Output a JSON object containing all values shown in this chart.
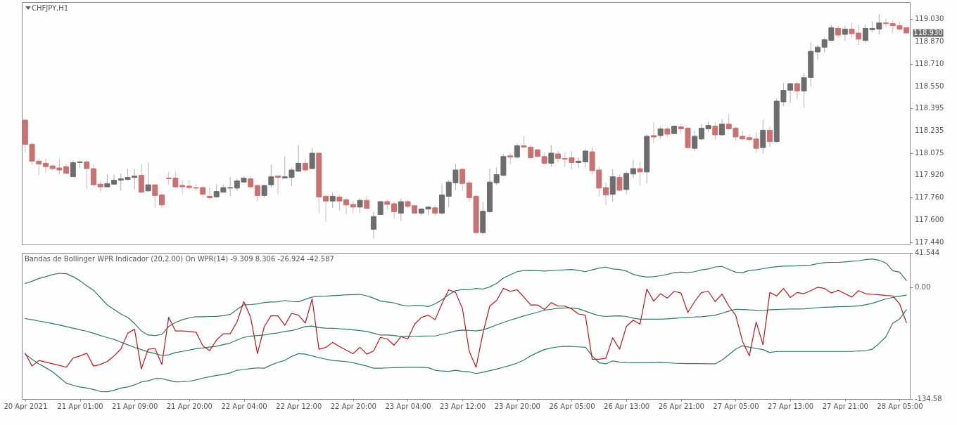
{
  "chart_data": [
    {
      "type": "candlestick",
      "title": "CHFJPY,H1",
      "ohlc": [
        [
          118.31,
          118.315,
          118.08,
          118.138
        ],
        [
          118.138,
          118.152,
          117.994,
          118.018
        ],
        [
          118.018,
          118.037,
          117.917,
          117.998
        ],
        [
          118.003,
          118.037,
          117.936,
          117.979
        ],
        [
          117.984,
          117.998,
          117.95,
          117.965
        ],
        [
          117.97,
          118.032,
          117.922,
          117.955
        ],
        [
          117.979,
          117.994,
          117.922,
          117.931
        ],
        [
          117.907,
          118.022,
          117.907,
          118.008
        ],
        [
          118.008,
          118.022,
          117.97,
          118.013
        ],
        [
          118.013,
          118.027,
          117.821,
          117.965
        ],
        [
          117.965,
          117.994,
          117.84,
          117.85
        ],
        [
          117.854,
          117.878,
          117.797,
          117.835
        ],
        [
          117.835,
          117.922,
          117.83,
          117.859
        ],
        [
          117.854,
          117.922,
          117.85,
          117.883
        ],
        [
          117.883,
          117.931,
          117.811,
          117.893
        ],
        [
          117.888,
          117.965,
          117.878,
          117.902
        ],
        [
          117.902,
          117.96,
          117.816,
          117.912
        ],
        [
          117.917,
          117.998,
          117.792,
          117.797
        ],
        [
          117.806,
          118.008,
          117.802,
          117.85
        ],
        [
          117.85,
          117.85,
          117.686,
          117.773
        ],
        [
          117.778,
          117.787,
          117.686,
          117.706
        ],
        [
          117.898,
          117.941,
          117.85,
          117.893
        ],
        [
          117.898,
          117.941,
          117.83,
          117.835
        ],
        [
          117.845,
          117.883,
          117.782,
          117.835
        ],
        [
          117.84,
          117.883,
          117.811,
          117.83
        ],
        [
          117.83,
          117.854,
          117.811,
          117.826
        ],
        [
          117.83,
          117.84,
          117.758,
          117.782
        ],
        [
          117.768,
          117.83,
          117.749,
          117.758
        ],
        [
          117.763,
          117.854,
          117.763,
          117.802
        ],
        [
          117.797,
          117.854,
          117.797,
          117.83
        ],
        [
          117.826,
          117.907,
          117.768,
          117.83
        ],
        [
          117.826,
          117.893,
          117.806,
          117.878
        ],
        [
          117.869,
          117.907,
          117.864,
          117.898
        ],
        [
          117.893,
          117.907,
          117.821,
          117.835
        ],
        [
          117.845,
          117.85,
          117.734,
          117.773
        ],
        [
          117.773,
          117.85,
          117.758,
          117.845
        ],
        [
          117.85,
          117.994,
          117.83,
          117.907
        ],
        [
          117.912,
          117.917,
          117.782,
          117.902
        ],
        [
          117.898,
          118.051,
          117.898,
          117.907
        ],
        [
          117.902,
          117.974,
          117.84,
          117.955
        ],
        [
          117.946,
          118.133,
          117.946,
          118.003
        ],
        [
          118.003,
          118.037,
          117.946,
          117.955
        ],
        [
          117.965,
          118.114,
          117.96,
          118.075
        ],
        [
          118.075,
          118.08,
          117.648,
          117.763
        ],
        [
          117.768,
          117.778,
          117.586,
          117.734
        ],
        [
          117.734,
          117.797,
          117.686,
          117.768
        ],
        [
          117.763,
          117.778,
          117.667,
          117.734
        ],
        [
          117.744,
          117.758,
          117.638,
          117.706
        ],
        [
          117.71,
          117.734,
          117.648,
          117.691
        ],
        [
          117.691,
          117.754,
          117.648,
          117.739
        ],
        [
          117.739,
          117.768,
          117.682,
          117.682
        ],
        [
          117.533,
          117.658,
          117.466,
          117.624
        ],
        [
          117.638,
          117.734,
          117.638,
          117.73
        ],
        [
          117.73,
          117.744,
          117.672,
          117.71
        ],
        [
          117.715,
          117.73,
          117.61,
          117.658
        ],
        [
          117.648,
          117.754,
          117.59,
          117.73
        ],
        [
          117.73,
          117.739,
          117.682,
          117.696
        ],
        [
          117.701,
          117.706,
          117.638,
          117.648
        ],
        [
          117.648,
          117.686,
          117.634,
          117.677
        ],
        [
          117.677,
          117.701,
          117.634,
          117.691
        ],
        [
          117.686,
          117.701,
          117.629,
          117.648
        ],
        [
          117.648,
          117.854,
          117.638,
          117.778
        ],
        [
          117.768,
          117.883,
          117.691,
          117.869
        ],
        [
          117.864,
          117.998,
          117.811,
          117.955
        ],
        [
          117.96,
          117.97,
          117.806,
          117.859
        ],
        [
          117.864,
          117.883,
          117.73,
          117.758
        ],
        [
          117.768,
          117.778,
          117.494,
          117.509
        ],
        [
          117.509,
          117.73,
          117.494,
          117.662
        ],
        [
          117.658,
          117.965,
          117.648,
          117.869
        ],
        [
          117.864,
          117.974,
          117.85,
          117.922
        ],
        [
          117.917,
          118.07,
          117.912,
          118.051
        ],
        [
          118.056,
          118.08,
          117.998,
          118.046
        ],
        [
          118.046,
          118.142,
          118.042,
          118.128
        ],
        [
          118.128,
          118.195,
          118.114,
          118.118
        ],
        [
          118.118,
          118.133,
          118.037,
          118.042
        ],
        [
          118.099,
          118.104,
          118.042,
          118.051
        ],
        [
          118.051,
          118.08,
          117.994,
          118.003
        ],
        [
          118.003,
          118.133,
          117.979,
          118.075
        ],
        [
          118.07,
          118.09,
          118.008,
          118.037
        ],
        [
          118.037,
          118.08,
          117.979,
          118.032
        ],
        [
          118.042,
          118.09,
          117.96,
          118.008
        ],
        [
          118.008,
          118.042,
          117.97,
          118.018
        ],
        [
          118.013,
          118.104,
          117.97,
          118.09
        ],
        [
          118.085,
          118.114,
          117.922,
          117.95
        ],
        [
          117.955,
          117.979,
          117.768,
          117.826
        ],
        [
          117.83,
          117.864,
          117.706,
          117.778
        ],
        [
          117.782,
          117.96,
          117.73,
          117.907
        ],
        [
          117.902,
          117.926,
          117.806,
          117.811
        ],
        [
          117.816,
          117.946,
          117.782,
          117.931
        ],
        [
          117.926,
          118.027,
          117.898,
          117.965
        ],
        [
          117.965,
          118.013,
          117.845,
          117.941
        ],
        [
          117.941,
          118.21,
          117.859,
          118.195
        ],
        [
          118.2,
          118.296,
          118.147,
          118.19
        ],
        [
          118.2,
          118.262,
          118.176,
          118.248
        ],
        [
          118.248,
          118.262,
          118.19,
          118.21
        ],
        [
          118.214,
          118.272,
          118.21,
          118.267
        ],
        [
          118.262,
          118.282,
          118.214,
          118.248
        ],
        [
          118.253,
          118.258,
          118.114,
          118.114
        ],
        [
          118.109,
          118.234,
          118.09,
          118.195
        ],
        [
          118.176,
          118.286,
          118.166,
          118.253
        ],
        [
          118.248,
          118.301,
          118.224,
          118.272
        ],
        [
          118.267,
          118.296,
          118.171,
          118.205
        ],
        [
          118.205,
          118.315,
          118.2,
          118.282
        ],
        [
          118.282,
          118.354,
          118.238,
          118.248
        ],
        [
          118.253,
          118.262,
          118.166,
          118.19
        ],
        [
          118.195,
          118.234,
          118.171,
          118.176
        ],
        [
          118.186,
          118.21,
          118.162,
          118.171
        ],
        [
          118.176,
          118.224,
          118.08,
          118.109
        ],
        [
          118.114,
          118.31,
          118.07,
          118.238
        ],
        [
          118.238,
          118.262,
          118.118,
          118.157
        ],
        [
          118.157,
          118.464,
          118.152,
          118.445
        ],
        [
          118.44,
          118.574,
          118.411,
          118.522
        ],
        [
          118.522,
          118.574,
          118.43,
          118.57
        ],
        [
          118.57,
          118.579,
          118.459,
          118.517
        ],
        [
          118.517,
          118.646,
          118.397,
          118.613
        ],
        [
          118.613,
          118.862,
          118.55,
          118.8
        ],
        [
          118.795,
          118.843,
          118.742,
          118.829
        ],
        [
          118.829,
          118.896,
          118.79,
          118.882
        ],
        [
          118.877,
          118.987,
          118.872,
          118.968
        ],
        [
          118.963,
          118.982,
          118.896,
          118.915
        ],
        [
          118.92,
          118.978,
          118.877,
          118.958
        ],
        [
          118.958,
          119.002,
          118.896,
          118.925
        ],
        [
          118.93,
          118.987,
          118.843,
          118.886
        ],
        [
          118.877,
          118.992,
          118.862,
          118.963
        ],
        [
          118.954,
          119.011,
          118.934,
          118.963
        ],
        [
          118.958,
          119.064,
          118.92,
          119.002
        ],
        [
          119.002,
          119.035,
          118.973,
          118.997
        ],
        [
          118.997,
          119.021,
          118.934,
          118.982
        ],
        [
          118.982,
          119.011,
          118.944,
          118.958
        ],
        [
          118.968,
          118.968,
          118.925,
          118.93
        ]
      ],
      "colors": [
        "#c97272",
        "#c97272",
        "#c97272",
        "#c97272",
        "#c97272",
        "#c97272",
        "#c97272",
        "#6d6d6d",
        "#6d6d6d",
        "#c97272",
        "#c97272",
        "#c97272",
        "#6d6d6d",
        "#6d6d6d",
        "#6d6d6d",
        "#6d6d6d",
        "#6d6d6d",
        "#c97272",
        "#6d6d6d",
        "#c97272",
        "#c97272",
        "#c97272",
        "#c97272",
        "#c97272",
        "#c97272",
        "#c97272",
        "#c97272",
        "#c97272",
        "#6d6d6d",
        "#6d6d6d",
        "#6d6d6d",
        "#6d6d6d",
        "#6d6d6d",
        "#c97272",
        "#c97272",
        "#6d6d6d",
        "#6d6d6d",
        "#c97272",
        "#6d6d6d",
        "#6d6d6d",
        "#6d6d6d",
        "#c97272",
        "#6d6d6d",
        "#c97272",
        "#c97272",
        "#6d6d6d",
        "#c97272",
        "#c97272",
        "#c97272",
        "#6d6d6d",
        "#c97272",
        "#6d6d6d",
        "#6d6d6d",
        "#c97272",
        "#c97272",
        "#6d6d6d",
        "#c97272",
        "#c97272",
        "#6d6d6d",
        "#6d6d6d",
        "#c97272",
        "#6d6d6d",
        "#6d6d6d",
        "#6d6d6d",
        "#c97272",
        "#c97272",
        "#c97272",
        "#6d6d6d",
        "#6d6d6d",
        "#6d6d6d",
        "#6d6d6d",
        "#c97272",
        "#6d6d6d",
        "#c97272",
        "#c97272",
        "#c97272",
        "#c97272",
        "#6d6d6d",
        "#c97272",
        "#c97272",
        "#c97272",
        "#6d6d6d",
        "#6d6d6d",
        "#c97272",
        "#c97272",
        "#c97272",
        "#6d6d6d",
        "#c97272",
        "#6d6d6d",
        "#6d6d6d",
        "#c97272",
        "#6d6d6d",
        "#c97272",
        "#6d6d6d",
        "#c97272",
        "#6d6d6d",
        "#c97272",
        "#c97272",
        "#6d6d6d",
        "#6d6d6d",
        "#6d6d6d",
        "#c97272",
        "#6d6d6d",
        "#c97272",
        "#c97272",
        "#c97272",
        "#c97272",
        "#c97272",
        "#6d6d6d",
        "#c97272",
        "#6d6d6d",
        "#6d6d6d",
        "#6d6d6d",
        "#c97272",
        "#6d6d6d",
        "#6d6d6d",
        "#6d6d6d",
        "#6d6d6d",
        "#6d6d6d",
        "#c97272",
        "#6d6d6d",
        "#c97272",
        "#c97272",
        "#6d6d6d",
        "#6d6d6d",
        "#6d6d6d",
        "#c97272",
        "#c97272",
        "#c97272",
        "#c97272"
      ],
      "ylim": [
        117.425,
        119.15
      ],
      "yticks": [
        {
          "value": 119.03,
          "label": "119.030"
        },
        {
          "value": 118.87,
          "label": "118.870"
        },
        {
          "value": 118.71,
          "label": "118.710"
        },
        {
          "value": 118.55,
          "label": "118.550"
        },
        118.395,
        118.235,
        118.075,
        {
          "value": 117.92,
          "label": "117.920"
        },
        {
          "value": 117.76,
          "label": "117.760"
        },
        {
          "value": 117.6,
          "label": "117.600"
        },
        {
          "value": 117.44,
          "label": "117.440"
        }
      ],
      "tick_labels": "y",
      "annotations": [
        "118.930"
      ]
    },
    {
      "type": "line",
      "title": "Bandas de Bollinger WPR Indicador (20,2.00) On WPR(14) -9.309 8.306 -26.924 -42.587",
      "categories": [
        "20 Apr 2021",
        null,
        null,
        null,
        null,
        null,
        null,
        null,
        "21 Apr 01:00",
        null,
        null,
        null,
        null,
        null,
        null,
        null,
        "21 Apr 09:00",
        null,
        null,
        null,
        null,
        null,
        null,
        null,
        "21 Apr 20:00",
        null,
        null,
        null,
        null,
        null,
        null,
        null,
        "22 Apr 04:00",
        null,
        null,
        null,
        null,
        null,
        null,
        null,
        "22 Apr 12:00",
        null,
        null,
        null,
        null,
        null,
        null,
        null,
        "22 Apr 20:00",
        null,
        null,
        null,
        null,
        null,
        null,
        null,
        "23 Apr 04:00",
        null,
        null,
        null,
        null,
        null,
        null,
        null,
        "23 Apr 12:00",
        null,
        null,
        null,
        null,
        null,
        null,
        null,
        "23 Apr 20:00",
        null,
        null,
        null,
        null,
        null,
        null,
        null,
        "26 Apr 05:00",
        null,
        null,
        null,
        null,
        null,
        null,
        null,
        "26 Apr 13:00",
        null,
        null,
        null,
        null,
        null,
        null,
        null,
        "26 Apr 21:00",
        null,
        null,
        null,
        null,
        null,
        null,
        null,
        "27 Apr 05:00",
        null,
        null,
        null,
        null,
        null,
        null,
        null,
        "27 Apr 13:00",
        null,
        null,
        null,
        null,
        null,
        null,
        null,
        "27 Apr 21:00",
        null,
        null,
        null,
        null,
        null,
        null,
        null,
        "28 Apr 05:00",
        null
      ],
      "series": [
        {
          "color": "#2e7a5c",
          "values": [
            4.7,
            7.4,
            10.7,
            12.9,
            15.4,
            17.0,
            16.5,
            12.9,
            8.0,
            2.0,
            -3.5,
            -12.2,
            -21.2,
            -26.7,
            -32.1,
            -36.2,
            -43.6,
            -52.6,
            -57.5,
            -58.1,
            -56.7,
            -47.2,
            -42.3,
            -39.0,
            -36.8,
            -35.4,
            -35.4,
            -35.1,
            -34.9,
            -34.1,
            -32.7,
            -26.7,
            -21.2,
            -20.7,
            -19.9,
            -18.2,
            -17.7,
            -17.4,
            -15.8,
            -17.1,
            -17.4,
            -14.4,
            -11.7,
            -10.9,
            -10.6,
            -10.0,
            -9.5,
            -8.9,
            -8.7,
            -8.4,
            -10.3,
            -13.0,
            -16.6,
            -17.7,
            -18.8,
            -21.2,
            -22.6,
            -21.8,
            -21.8,
            -23.1,
            -19.9,
            -14.9,
            -8.9,
            -4.0,
            -2.7,
            -2.9,
            -1.3,
            -2.1,
            0.6,
            4.7,
            11.3,
            15.1,
            18.9,
            20.3,
            20.5,
            20.3,
            19.7,
            20.3,
            20.8,
            21.1,
            21.6,
            20.5,
            18.9,
            21.1,
            23.3,
            24.4,
            22.2,
            21.6,
            19.7,
            15.6,
            13.7,
            12.4,
            12.9,
            14.0,
            15.6,
            17.8,
            18.4,
            17.8,
            18.9,
            21.1,
            22.2,
            24.6,
            25.2,
            21.6,
            18.4,
            17.5,
            20.5,
            21.1,
            22.5,
            23.8,
            24.9,
            25.5,
            25.7,
            26.0,
            26.6,
            26.8,
            28.5,
            29.8,
            30.1,
            30.1,
            30.6,
            31.5,
            32.0,
            33.4,
            34.2,
            32.6,
            29.3,
            20.0,
            18.4,
            8.306
          ]
        },
        {
          "color": "#2e7a5c",
          "values": [
            -37.6,
            -39.0,
            -40.6,
            -42.0,
            -43.6,
            -45.3,
            -47.2,
            -49.1,
            -51.0,
            -52.9,
            -55.3,
            -58.1,
            -60.5,
            -62.7,
            -66.0,
            -69.3,
            -72.3,
            -75.0,
            -77.7,
            -79.9,
            -82.1,
            -81.3,
            -78.6,
            -77.2,
            -75.6,
            -73.9,
            -73.1,
            -72.0,
            -70.9,
            -69.0,
            -67.1,
            -63.5,
            -60.3,
            -58.9,
            -58.1,
            -57.5,
            -55.9,
            -54.8,
            -53.2,
            -52.1,
            -49.9,
            -47.2,
            -46.6,
            -48.5,
            -49.1,
            -49.3,
            -49.9,
            -50.4,
            -51.3,
            -52.1,
            -53.2,
            -55.3,
            -57.5,
            -57.5,
            -58.1,
            -59.4,
            -59.4,
            -59.2,
            -58.9,
            -58.6,
            -58.6,
            -56.7,
            -54.8,
            -52.6,
            -51.5,
            -51.8,
            -52.6,
            -51.3,
            -48.5,
            -45.3,
            -42.3,
            -39.5,
            -37.1,
            -34.3,
            -32.1,
            -30.0,
            -27.5,
            -26.4,
            -25.3,
            -24.8,
            -24.8,
            -25.9,
            -28.6,
            -31.6,
            -34.1,
            -35.1,
            -34.6,
            -34.3,
            -35.1,
            -37.1,
            -38.4,
            -38.4,
            -38.4,
            -38.4,
            -37.9,
            -37.3,
            -36.8,
            -36.2,
            -35.7,
            -35.4,
            -34.6,
            -33.5,
            -31.3,
            -28.6,
            -26.4,
            -26.7,
            -27.2,
            -27.5,
            -28.1,
            -27.0,
            -26.7,
            -26.4,
            -26.1,
            -26.1,
            -25.9,
            -25.3,
            -24.5,
            -24.0,
            -23.7,
            -23.4,
            -23.1,
            -22.9,
            -22.3,
            -21.0,
            -19.3,
            -16.6,
            -13.9,
            -12.2,
            -10.6,
            -9.309
          ]
        },
        {
          "color": "#2e7a5c",
          "values": [
            -80.5,
            -86.7,
            -92.2,
            -96.8,
            -101.8,
            -108.6,
            -115.4,
            -118.1,
            -120.1,
            -121.4,
            -123.1,
            -125.5,
            -125.8,
            -124.1,
            -121.4,
            -120.1,
            -117.6,
            -114.0,
            -112.7,
            -110.0,
            -110.0,
            -112.1,
            -114.0,
            -113.8,
            -113.2,
            -111.6,
            -109.4,
            -107.8,
            -106.1,
            -105.0,
            -103.1,
            -99.9,
            -99.0,
            -97.9,
            -97.1,
            -97.4,
            -93.6,
            -90.3,
            -88.1,
            -83.2,
            -79.9,
            -80.5,
            -82.6,
            -84.8,
            -86.5,
            -88.1,
            -88.7,
            -89.5,
            -90.8,
            -92.8,
            -94.9,
            -97.4,
            -97.4,
            -97.1,
            -96.8,
            -96.6,
            -96.3,
            -96.3,
            -96.3,
            -96.8,
            -99.9,
            -100.9,
            -101.2,
            -99.9,
            -101.2,
            -101.8,
            -103.9,
            -102.3,
            -100.4,
            -98.5,
            -96.3,
            -94.1,
            -91.4,
            -87.6,
            -82.6,
            -78.6,
            -75.0,
            -73.1,
            -71.7,
            -71.2,
            -71.2,
            -71.7,
            -72.3,
            -82.6,
            -90.8,
            -92.2,
            -88.7,
            -90.0,
            -90.6,
            -90.8,
            -90.8,
            -90.8,
            -90.6,
            -90.3,
            -90.8,
            -91.4,
            -91.7,
            -91.9,
            -91.9,
            -91.9,
            -92.2,
            -92.2,
            -87.6,
            -81.3,
            -74.5,
            -70.4,
            -72.3,
            -73.6,
            -75.0,
            -78.6,
            -77.2,
            -77.2,
            -77.2,
            -77.2,
            -77.2,
            -77.2,
            -77.2,
            -77.2,
            -77.2,
            -77.2,
            -77.2,
            -77.2,
            -76.6,
            -76.4,
            -74.5,
            -67.6,
            -59.4,
            -43.1,
            -38.2,
            -26.924
          ]
        },
        {
          "color": "#c0141c",
          "values": [
            -79.4,
            -94.9,
            -88.1,
            -90.0,
            -92.2,
            -94.1,
            -96.3,
            -85.4,
            -82.6,
            -79.4,
            -94.9,
            -93.0,
            -89.5,
            -82.6,
            -74.5,
            -55.3,
            -50.4,
            -98.2,
            -74.5,
            -73.6,
            -92.8,
            -36.2,
            -52.6,
            -52.6,
            -53.2,
            -54.0,
            -70.4,
            -76.4,
            -63.5,
            -55.9,
            -55.9,
            -41.7,
            -17.1,
            -36.2,
            -79.9,
            -47.2,
            -34.1,
            -34.3,
            -45.8,
            -31.3,
            -33.5,
            -43.1,
            -13.9,
            -74.5,
            -72.5,
            -66.3,
            -71.2,
            -75.8,
            -79.9,
            -72.3,
            -80.5,
            -76.6,
            -60.3,
            -62.2,
            -69.8,
            -59.4,
            -62.2,
            -44.4,
            -36.2,
            -33.5,
            -39.0,
            -19.9,
            -2.9,
            -6.2,
            -25.3,
            -77.2,
            -96.3,
            -55.3,
            -22.6,
            -15.8,
            -1.3,
            -4.8,
            -2.9,
            -11.7,
            -21.2,
            -21.2,
            -26.7,
            -18.5,
            -22.6,
            -22.6,
            -25.9,
            -32.1,
            -33.5,
            -86.7,
            -86.7,
            -85.4,
            -60.8,
            -74.5,
            -47.2,
            -39.5,
            -44.4,
            -2.1,
            -16.6,
            -7.6,
            -13.0,
            -4.8,
            -6.8,
            -30.2,
            -17.1,
            -6.2,
            -4.8,
            -17.1,
            -8.1,
            -22.6,
            -33.5,
            -64.9,
            -82.6,
            -41.7,
            -69.0,
            -6.2,
            -10.3,
            -1.3,
            -12.2,
            -6.2,
            -7.6,
            -4.0,
            0.1,
            -1.3,
            -6.8,
            -3.5,
            -7.6,
            -11.7,
            -4.0,
            -7.6,
            -8.4,
            -8.9,
            -9.8,
            -10.3,
            -19.9,
            -42.587
          ]
        }
      ],
      "ylim": [
        -134.58,
        41.544
      ],
      "yticks": [
        41.544,
        {
          "value": 0,
          "label": "0.00"
        },
        -134.58
      ]
    }
  ]
}
